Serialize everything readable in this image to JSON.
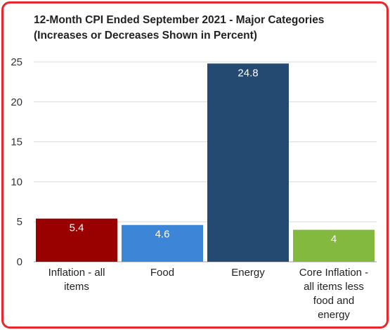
{
  "chart_data": {
    "type": "bar",
    "title": [
      "12-Month CPI Ended September 2021 - Major Categories",
      "(Increases or Decreases Shown in Percent)"
    ],
    "categories": [
      [
        "Inflation - all",
        "items"
      ],
      [
        "Food"
      ],
      [
        "Energy"
      ],
      [
        "Core Inflation -",
        "all items less",
        "food and",
        "energy"
      ]
    ],
    "values": [
      5.4,
      4.6,
      24.8,
      4
    ],
    "data_labels": [
      "5.4",
      "4.6",
      "24.8",
      "4"
    ],
    "colors": [
      "#990000",
      "#3d85d6",
      "#244a72",
      "#82b93e"
    ],
    "yticks": [
      "0",
      "5",
      "10",
      "15",
      "20",
      "25"
    ],
    "ylim": [
      0,
      25
    ],
    "grid": true,
    "legend": "none",
    "xlabel": "",
    "ylabel": ""
  },
  "style": {
    "border_color": "#e8262b",
    "grid_color": "#d9d9d9"
  }
}
